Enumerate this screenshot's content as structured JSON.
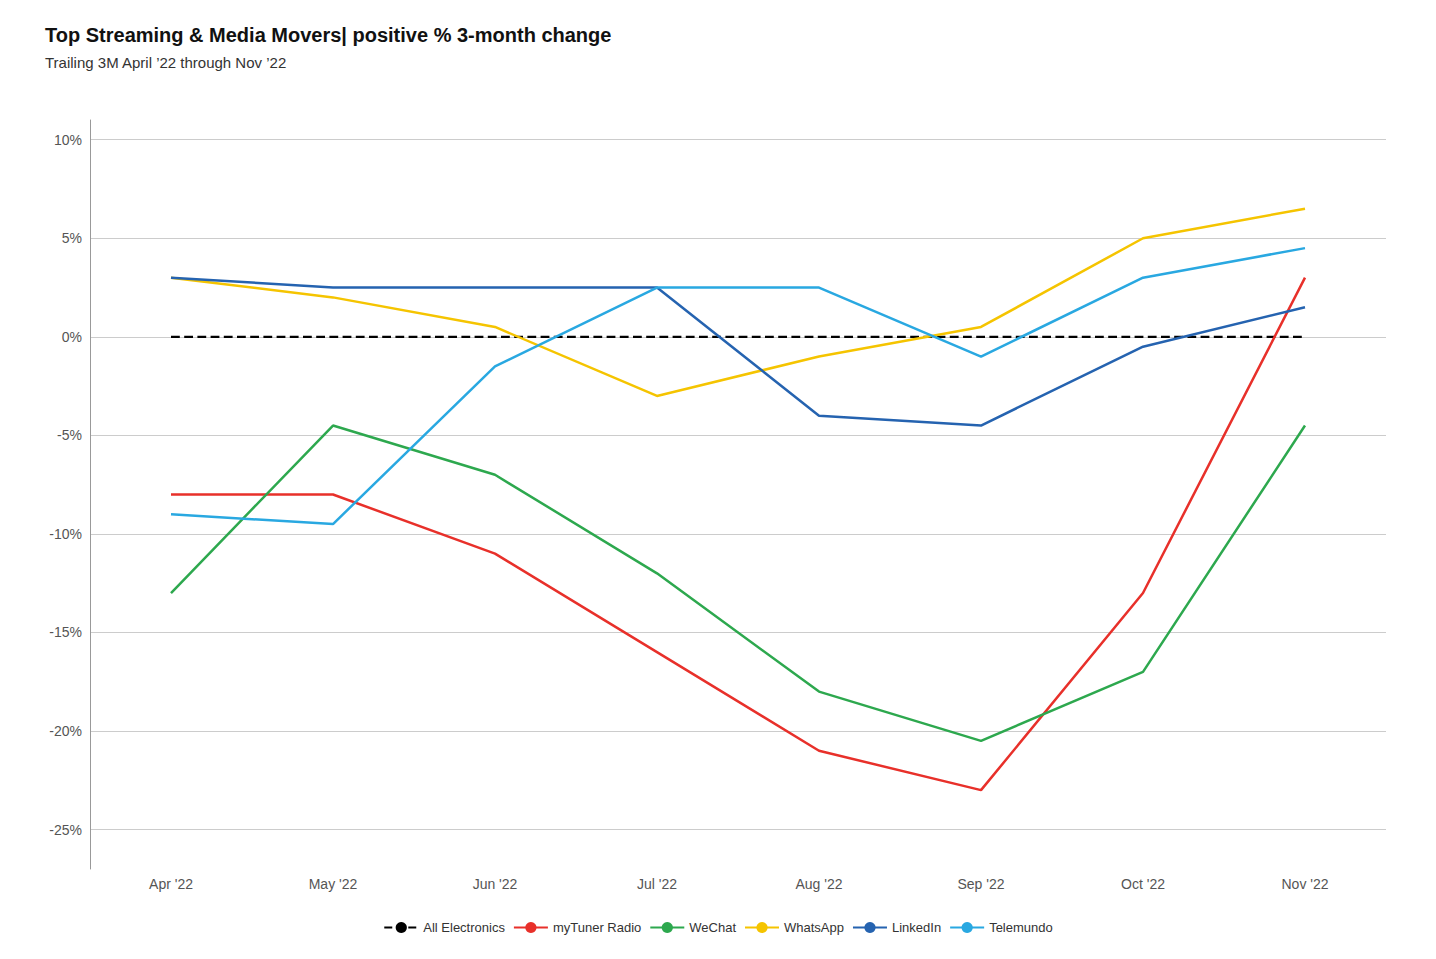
{
  "chart_data": {
    "type": "line",
    "title": "Top Streaming & Media Movers| positive % 3-month change",
    "subtitle": "Trailing 3M April ’22 through Nov ’22",
    "categories": [
      "Apr '22",
      "May '22",
      "Jun '22",
      "Jul '22",
      "Aug '22",
      "Sep '22",
      "Oct '22",
      "Nov '22"
    ],
    "series": [
      {
        "name": "All Electronics",
        "color": "#000000",
        "line_style": "dashed",
        "values": [
          0,
          0,
          0,
          0,
          0,
          0,
          0,
          0
        ]
      },
      {
        "name": "myTuner Radio",
        "color": "#e8302a",
        "values": [
          -8,
          -8,
          -11,
          -16,
          -21,
          -23,
          -13,
          3
        ]
      },
      {
        "name": "WeChat",
        "color": "#2da84e",
        "values": [
          -13,
          -4.5,
          -7,
          -12,
          -18,
          -20.5,
          -17,
          -4.5
        ]
      },
      {
        "name": "WhatsApp",
        "color": "#f5c400",
        "values": [
          3,
          2,
          0.5,
          -3,
          -1,
          0.5,
          5,
          6.5
        ]
      },
      {
        "name": "LinkedIn",
        "color": "#2563b0",
        "values": [
          3,
          2.5,
          2.5,
          2.5,
          -4,
          -4.5,
          -0.5,
          1.5
        ]
      },
      {
        "name": "Telemundo",
        "color": "#29a8e1",
        "values": [
          -9,
          -9.5,
          -1.5,
          2.5,
          2.5,
          -1,
          3,
          4.5
        ]
      }
    ],
    "ylim": [
      -27,
      11
    ],
    "yticks": [
      {
        "value": 10,
        "label": "10%"
      },
      {
        "value": 5,
        "label": "5%"
      },
      {
        "value": 0,
        "label": "0%"
      },
      {
        "value": -5,
        "label": "-5%"
      },
      {
        "value": -10,
        "label": "-10%"
      },
      {
        "value": -15,
        "label": "-15%"
      },
      {
        "value": -20,
        "label": "-20%"
      },
      {
        "value": -25,
        "label": "-25%"
      }
    ],
    "grid": true,
    "legend": "bottom"
  }
}
